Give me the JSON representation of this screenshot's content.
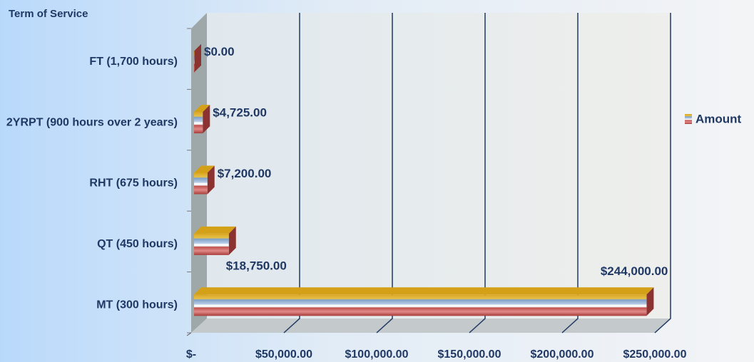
{
  "chart_data": {
    "type": "bar",
    "orientation": "horizontal",
    "y_axis_title": "Term of Service",
    "categories": [
      "FT (1,700 hours)",
      "2YRPT (900 hours over 2 years)",
      "RHT (675 hours)",
      "QT (450 hours)",
      "MT (300 hours)"
    ],
    "series": [
      {
        "name": "Amount",
        "color": "#c0504d",
        "values": [
          0,
          4725,
          7200,
          18750,
          244000
        ],
        "value_labels": [
          "$0.00",
          "$4,725.00",
          "$7,200.00",
          "$18,750.00",
          "$244,000.00"
        ]
      }
    ],
    "xlim": [
      0,
      250000
    ],
    "xticks": [
      {
        "value": 0,
        "label": "$-"
      },
      {
        "value": 50000,
        "label": "$50,000.00"
      },
      {
        "value": 100000,
        "label": "$100,000.00"
      },
      {
        "value": 150000,
        "label": "$150,000.00"
      },
      {
        "value": 200000,
        "label": "$200,000.00"
      },
      {
        "value": 250000,
        "label": "$250,000.00"
      }
    ],
    "grid": true,
    "legend": "right"
  }
}
